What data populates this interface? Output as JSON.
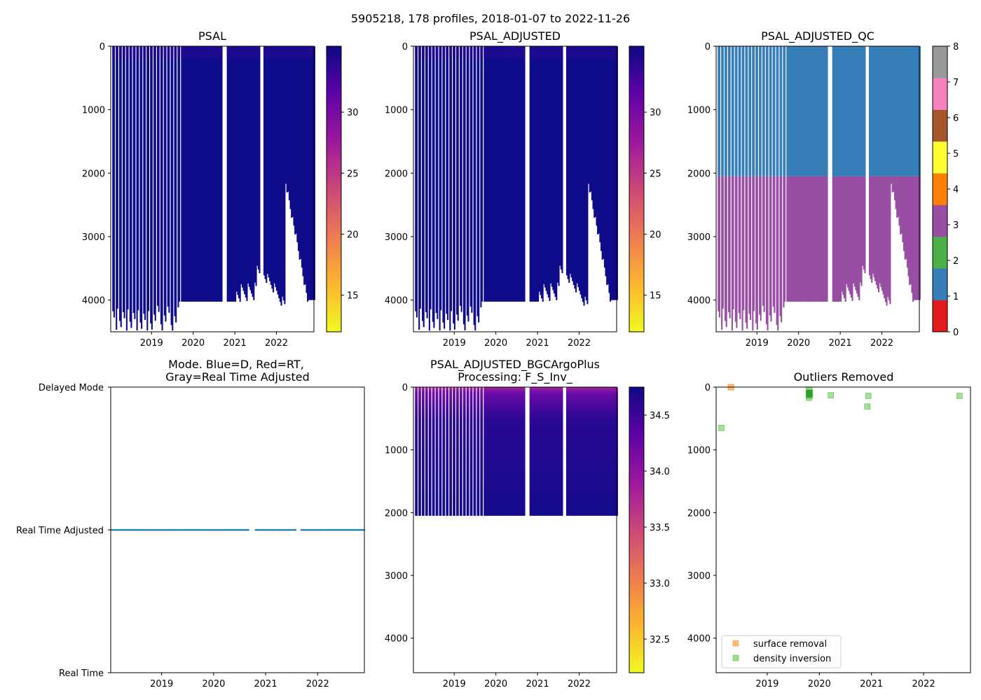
{
  "figure_title": "5905218, 178 profiles, 2018-01-07 to 2022-11-26",
  "panels": {
    "psal": {
      "title": "PSAL"
    },
    "psal_adj": {
      "title": "PSAL_ADJUSTED"
    },
    "qc": {
      "title": "PSAL_ADJUSTED_QC"
    },
    "mode": {
      "title_line1": "Mode. Blue=D, Red=RT,",
      "title_line2": "Gray=Real Time Adjusted"
    },
    "bgc": {
      "title_line1": "PSAL_ADJUSTED_BGCArgoPlus",
      "title_line2": "Processing: F_S_Inv_"
    },
    "outliers": {
      "title": "Outliers Removed"
    }
  },
  "colors": {
    "plasma_stops": [
      "#f0f921",
      "#fdb42f",
      "#ed7953",
      "#cc4778",
      "#9c179e",
      "#5c01a6",
      "#0d0887"
    ],
    "qc_classes": [
      "#e41a1c",
      "#377eb8",
      "#4daf4a",
      "#984ea3",
      "#ff7f00",
      "#ffff33",
      "#a65628",
      "#f781bf",
      "#999999"
    ],
    "mode_points": "#1f77b4",
    "surface_removal": "#ffbb78",
    "density_inversion": "#98df8a",
    "density_inversion_dark": "#2ca02c"
  },
  "chart_data": [
    {
      "id": "psal",
      "type": "heatmap",
      "title": "PSAL",
      "x_ticks": [
        "2019",
        "2020",
        "2021",
        "2022"
      ],
      "x_range_years": [
        2018.02,
        2022.9
      ],
      "y_ticks": [
        0,
        1000,
        2000,
        3000,
        4000
      ],
      "ylim": [
        4500,
        0
      ],
      "colorbar": {
        "range": [
          12.0,
          35.4
        ],
        "ticks": [
          15,
          20,
          25,
          30
        ]
      },
      "gaps_years": [
        [
          2020.68,
          2020.78
        ],
        [
          2021.58,
          2021.66
        ]
      ],
      "profile_max_depth": "mostly ~4020 dbar mid-record; deeper (4100-4500) in 2018-2019; 2100-4000 in 2022"
    },
    {
      "id": "psal_adj",
      "type": "heatmap",
      "title": "PSAL_ADJUSTED",
      "x_ticks": [
        "2019",
        "2020",
        "2021",
        "2022"
      ],
      "y_ticks": [
        0,
        1000,
        2000,
        3000,
        4000
      ],
      "ylim": [
        4500,
        0
      ],
      "colorbar": {
        "range": [
          12.0,
          35.4
        ],
        "ticks": [
          15,
          20,
          25,
          30
        ]
      }
    },
    {
      "id": "qc",
      "type": "heatmap",
      "title": "PSAL_ADJUSTED_QC",
      "x_ticks": [
        "2019",
        "2020",
        "2021",
        "2022"
      ],
      "y_ticks": [
        0,
        1000,
        2000,
        3000,
        4000
      ],
      "ylim": [
        4500,
        0
      ],
      "qc_boundary_depth": 2050,
      "qc_shallow_class": 1,
      "qc_deep_class": 3,
      "colorbar": {
        "range": [
          0,
          8
        ],
        "ticks": [
          0,
          1,
          2,
          3,
          4,
          5,
          6,
          7,
          8
        ]
      }
    },
    {
      "id": "mode",
      "type": "scatter",
      "title": "Mode. Blue=D, Red=RT, Gray=Real Time Adjusted",
      "x_ticks": [
        "2019",
        "2020",
        "2021",
        "2022"
      ],
      "y_categories": [
        "Real Time",
        "Real Time Adjusted",
        "Delayed Mode"
      ],
      "points_category": "Real Time Adjusted",
      "profile_count": 178
    },
    {
      "id": "bgc",
      "type": "heatmap",
      "title": "PSAL_ADJUSTED_BGCArgoPlus Processing: F_S_Inv_",
      "x_ticks": [
        "2019",
        "2020",
        "2021",
        "2022"
      ],
      "y_ticks": [
        0,
        1000,
        2000,
        3000,
        4000
      ],
      "ylim": [
        4550,
        0
      ],
      "max_depth": 2050,
      "colorbar": {
        "range": [
          32.2,
          34.75
        ],
        "ticks": [
          32.5,
          33.0,
          33.5,
          34.0,
          34.5
        ]
      }
    },
    {
      "id": "outliers",
      "type": "scatter",
      "title": "Outliers Removed",
      "x_ticks": [
        "2019",
        "2020",
        "2021",
        "2022"
      ],
      "x_range_years": [
        2018.02,
        2022.9
      ],
      "y_ticks": [
        0,
        1000,
        2000,
        3000,
        4000
      ],
      "ylim": [
        4550,
        0
      ],
      "legend": {
        "position": "lower-left",
        "entries": [
          "surface removal",
          "density inversion"
        ]
      },
      "series": [
        {
          "name": "surface removal",
          "points": [
            [
              2018.3,
              0
            ],
            [
              2018.31,
              5
            ]
          ]
        },
        {
          "name": "density inversion",
          "points": [
            [
              2018.12,
              650
            ],
            [
              2019.8,
              60
            ],
            [
              2019.8,
              90
            ],
            [
              2019.8,
              110
            ],
            [
              2019.8,
              130
            ],
            [
              2019.8,
              150
            ],
            [
              2019.8,
              170
            ],
            [
              2019.82,
              75
            ],
            [
              2019.82,
              140
            ],
            [
              2019.8,
              40
            ],
            [
              2020.22,
              130
            ],
            [
              2020.92,
              310
            ],
            [
              2020.94,
              140
            ],
            [
              2022.69,
              140
            ]
          ]
        }
      ]
    }
  ]
}
